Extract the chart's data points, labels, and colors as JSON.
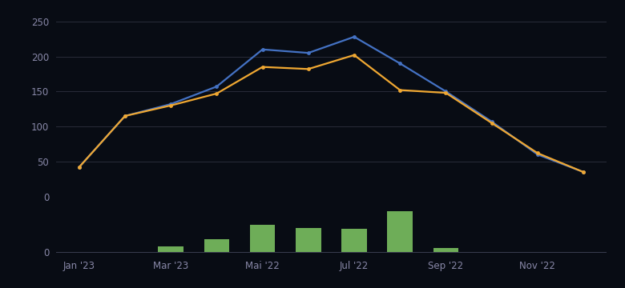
{
  "background_color": "#080c14",
  "grid_color": "#2a2d3a",
  "text_color": "#8888a8",
  "axis_line_color": "#3a3d50",
  "xtick_labels": [
    "Jan '23",
    "Mar '23",
    "Mai '22",
    "Jul '22",
    "Sep '22",
    "Nov '22"
  ],
  "xtick_positions": [
    0,
    2,
    4,
    6,
    8,
    10
  ],
  "blue_line": [
    42,
    115,
    132,
    157,
    210,
    205,
    228,
    190,
    150,
    107,
    60,
    35
  ],
  "orange_line": [
    42,
    115,
    130,
    147,
    185,
    182,
    202,
    152,
    148,
    105,
    62,
    35
  ],
  "green_bars": [
    0.5,
    0.5,
    5,
    12,
    25,
    22,
    21,
    37,
    4,
    0.5,
    0.5,
    0.5
  ],
  "blue_color": "#4472c4",
  "orange_color": "#f0a832",
  "green_color": "#7dc462",
  "ylim_main": [
    0,
    260
  ],
  "yticks_main": [
    0,
    50,
    100,
    150,
    200,
    250
  ],
  "bar_scale": 7.5,
  "line_width": 1.6,
  "marker_size": 3.5,
  "font_size_ticks": 8.5,
  "n_months": 12
}
